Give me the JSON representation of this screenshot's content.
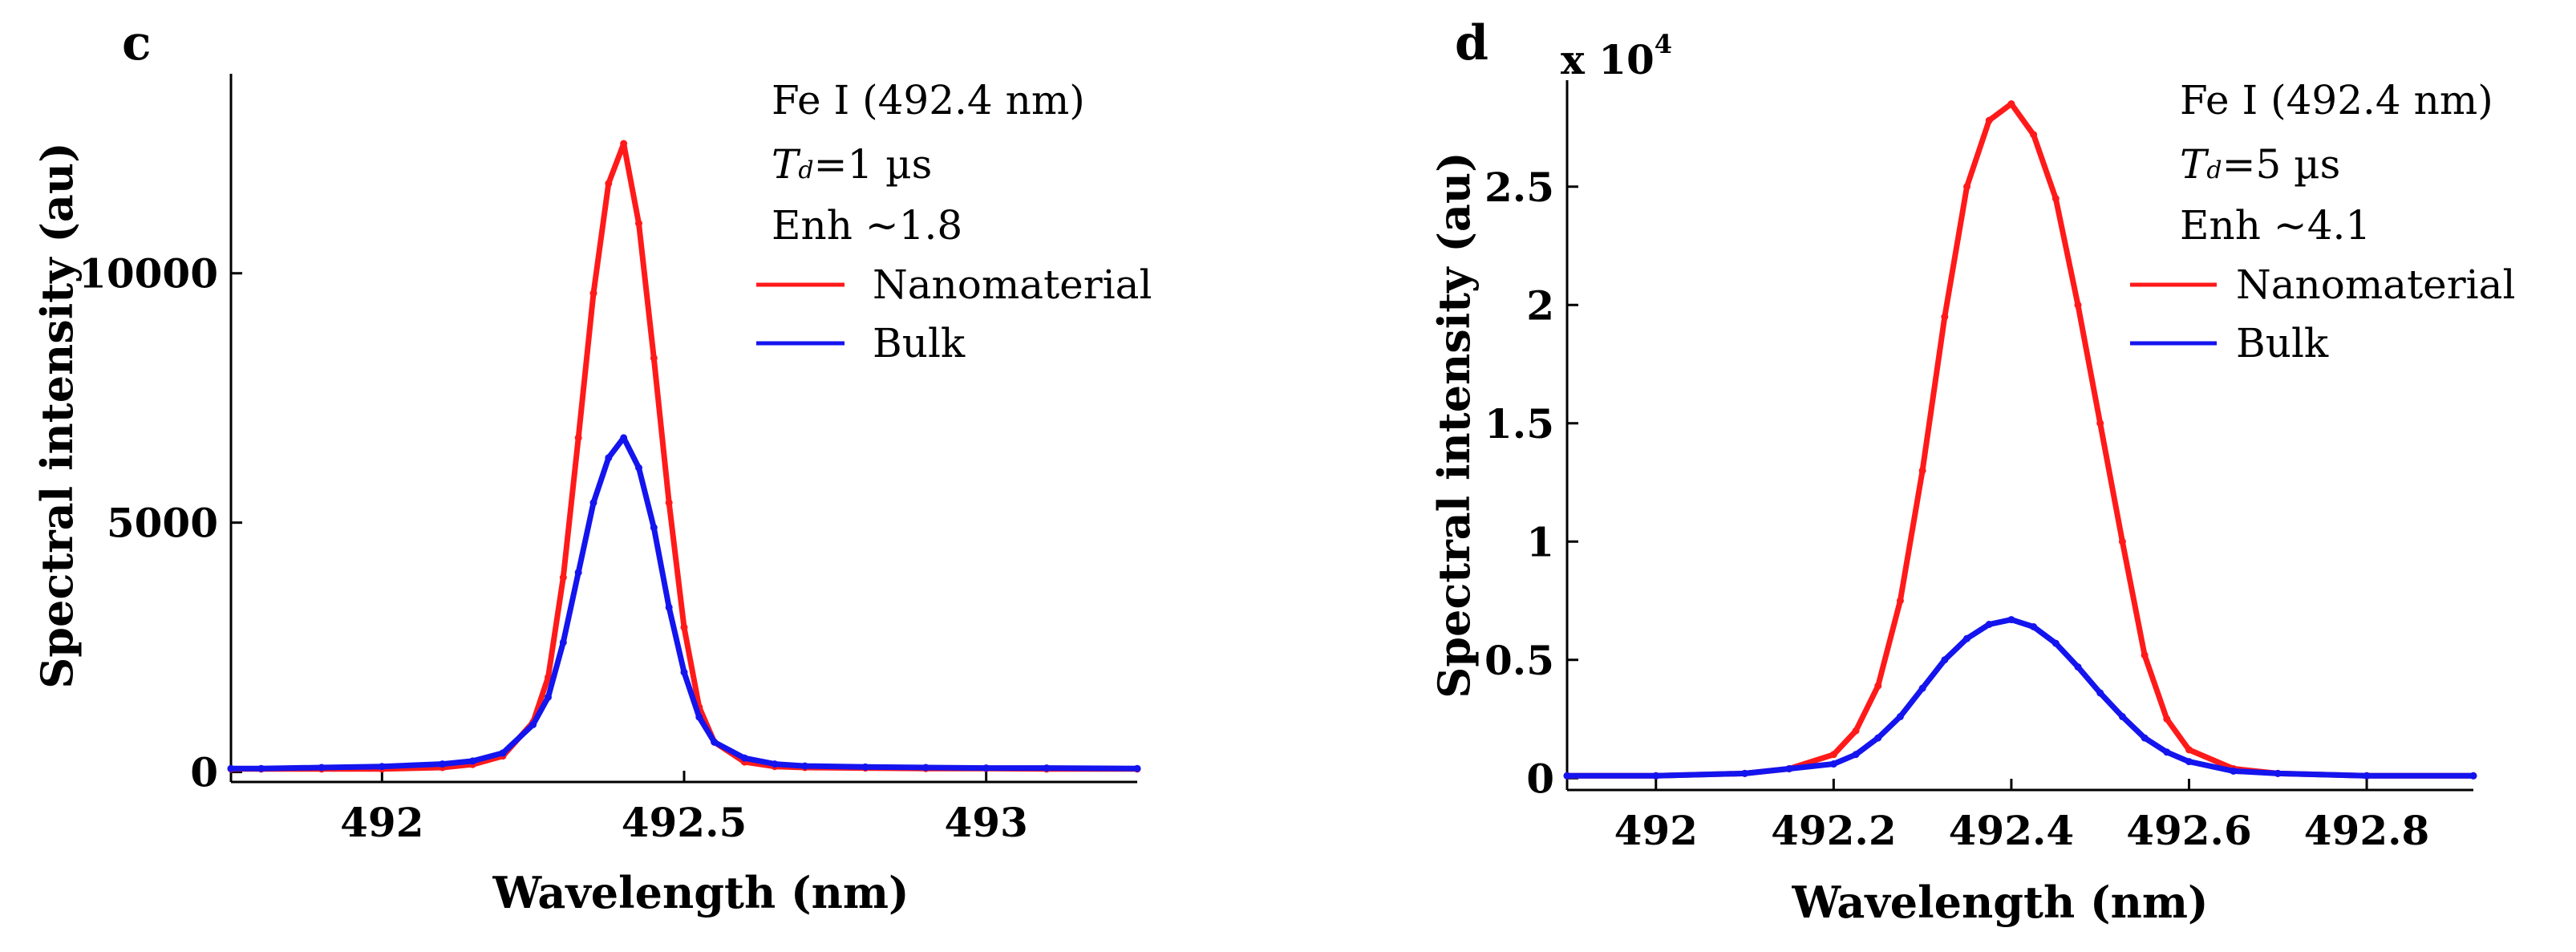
{
  "colors": {
    "nanomaterial": "#ff1a1a",
    "bulk": "#1414ee",
    "axis": "#000000"
  },
  "chart_data": [
    {
      "type": "line",
      "panel": "c",
      "xlabel": "Wavelength (nm)",
      "ylabel": "Spectral intensity (au)",
      "xlim": [
        491.75,
        493.25
      ],
      "ylim": [
        -200,
        14000
      ],
      "xticks": [
        492,
        492.5,
        493
      ],
      "xtick_labels": [
        "492",
        "492.5",
        "493"
      ],
      "yticks": [
        0,
        5000,
        10000
      ],
      "ytick_labels": [
        "0",
        "5000",
        "10000"
      ],
      "annotations": {
        "line": "Fe I (492.4 nm)",
        "td_symbol": "T",
        "td_sub": "d",
        "td_value": "=1 µs",
        "enh": "Enh ~1.8"
      },
      "legend_position": "top-right",
      "series": [
        {
          "name": "Nanomaterial",
          "color": "#ff1a1a",
          "x": [
            491.75,
            491.8,
            491.9,
            492.0,
            492.1,
            492.15,
            492.2,
            492.25,
            492.275,
            492.3,
            492.325,
            492.35,
            492.375,
            492.4,
            492.425,
            492.45,
            492.475,
            492.5,
            492.525,
            492.55,
            492.6,
            492.65,
            492.7,
            492.8,
            492.9,
            493.0,
            493.1,
            493.25
          ],
          "y": [
            60,
            60,
            60,
            60,
            90,
            150,
            320,
            1000,
            1900,
            3900,
            6700,
            9600,
            11800,
            12600,
            11000,
            8300,
            5400,
            2900,
            1300,
            600,
            200,
            110,
            90,
            80,
            70,
            70,
            60,
            60
          ]
        },
        {
          "name": "Bulk",
          "color": "#1414ee",
          "x": [
            491.75,
            491.8,
            491.9,
            492.0,
            492.1,
            492.15,
            492.2,
            492.25,
            492.275,
            492.3,
            492.325,
            492.35,
            492.375,
            492.4,
            492.425,
            492.45,
            492.475,
            492.5,
            492.525,
            492.55,
            492.6,
            492.65,
            492.7,
            492.8,
            492.9,
            493.0,
            493.1,
            493.25
          ],
          "y": [
            70,
            70,
            90,
            110,
            160,
            220,
            380,
            950,
            1500,
            2600,
            4000,
            5400,
            6300,
            6700,
            6100,
            4900,
            3300,
            2000,
            1100,
            600,
            280,
            160,
            120,
            100,
            90,
            80,
            80,
            70
          ]
        }
      ]
    },
    {
      "type": "line",
      "panel": "d",
      "xlabel": "Wavelength (nm)",
      "ylabel": "Spectral intensity (au)",
      "y_multiplier_base": "x 10",
      "y_multiplier_exp": "4",
      "xlim": [
        491.9,
        492.92
      ],
      "ylim": [
        -0.05,
        2.95
      ],
      "xticks": [
        492,
        492.2,
        492.4,
        492.6,
        492.8
      ],
      "xtick_labels": [
        "492",
        "492.2",
        "492.4",
        "492.6",
        "492.8"
      ],
      "yticks": [
        0,
        0.5,
        1,
        1.5,
        2,
        2.5
      ],
      "ytick_labels": [
        "0",
        "0.5",
        "1",
        "1.5",
        "2",
        "2.5"
      ],
      "annotations": {
        "line": "Fe I (492.4 nm)",
        "td_symbol": "T",
        "td_sub": "d",
        "td_value": "=5 µs",
        "enh": "Enh ~4.1"
      },
      "legend_position": "top-right",
      "series": [
        {
          "name": "Nanomaterial",
          "color": "#ff1a1a",
          "x": [
            491.9,
            492.0,
            492.1,
            492.15,
            492.2,
            492.225,
            492.25,
            492.275,
            492.3,
            492.325,
            492.35,
            492.375,
            492.4,
            492.425,
            492.45,
            492.475,
            492.5,
            492.525,
            492.55,
            492.575,
            492.6,
            492.65,
            492.7,
            492.8,
            492.92
          ],
          "y": [
            0.01,
            0.01,
            0.02,
            0.04,
            0.1,
            0.2,
            0.39,
            0.75,
            1.3,
            1.95,
            2.5,
            2.78,
            2.85,
            2.72,
            2.45,
            2.0,
            1.5,
            1.0,
            0.52,
            0.25,
            0.12,
            0.04,
            0.02,
            0.01,
            0.01
          ]
        },
        {
          "name": "Bulk",
          "color": "#1414ee",
          "x": [
            491.9,
            492.0,
            492.1,
            492.15,
            492.2,
            492.225,
            492.25,
            492.275,
            492.3,
            492.325,
            492.35,
            492.375,
            492.4,
            492.425,
            492.45,
            492.475,
            492.5,
            492.525,
            492.55,
            492.575,
            492.6,
            492.65,
            492.7,
            492.8,
            492.92
          ],
          "y": [
            0.01,
            0.01,
            0.02,
            0.04,
            0.06,
            0.1,
            0.17,
            0.26,
            0.38,
            0.5,
            0.59,
            0.65,
            0.67,
            0.64,
            0.57,
            0.47,
            0.36,
            0.26,
            0.17,
            0.11,
            0.07,
            0.03,
            0.02,
            0.01,
            0.01
          ]
        }
      ]
    }
  ]
}
